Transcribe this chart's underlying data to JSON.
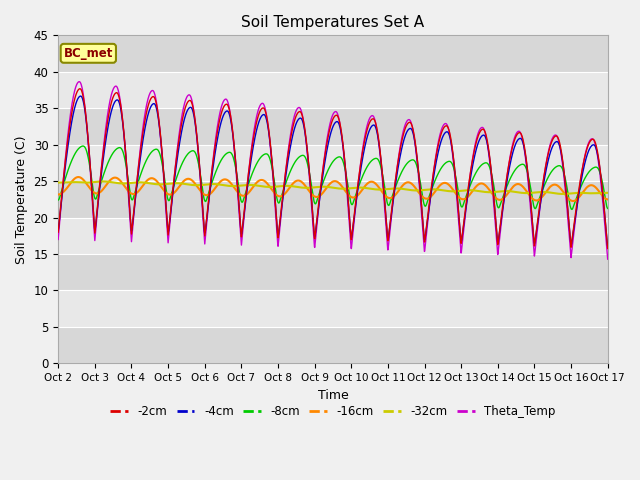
{
  "title": "Soil Temperatures Set A",
  "xlabel": "Time",
  "ylabel": "Soil Temperature (C)",
  "ylim": [
    0,
    45
  ],
  "tick_labels": [
    "Oct 2",
    "Oct 3",
    "Oct 4",
    "Oct 5",
    "Oct 6",
    "Oct 7",
    "Oct 8",
    "Oct 9",
    "Oct 10",
    "Oct 11",
    "Oct 12",
    "Oct 13",
    "Oct 14",
    "Oct 15",
    "Oct 16",
    "Oct 17"
  ],
  "series_colors": {
    "-2cm": "#dd0000",
    "-4cm": "#0000cc",
    "-8cm": "#00cc00",
    "-16cm": "#ff8800",
    "-32cm": "#cccc00",
    "Theta_Temp": "#cc00cc"
  },
  "bc_met_label": "BC_met",
  "plot_bg_color": "#e8e8e8",
  "fig_bg_color": "#f0f0f0"
}
